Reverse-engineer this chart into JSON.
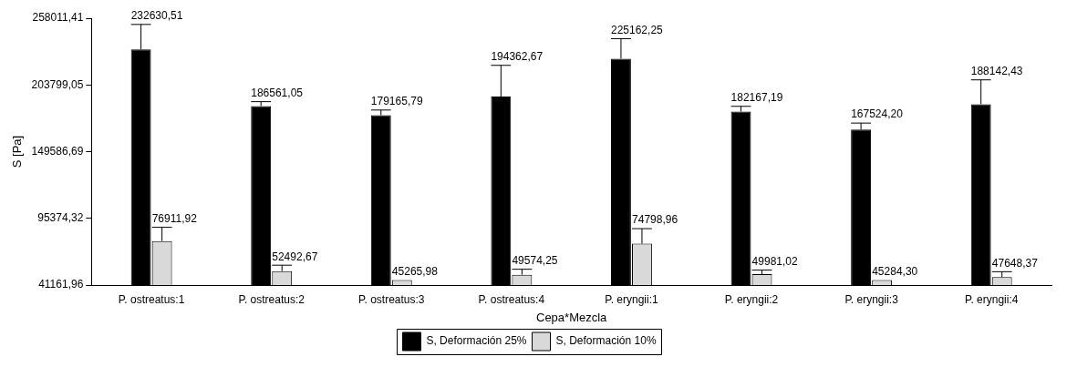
{
  "chart_data": {
    "type": "bar",
    "xlabel": "Cepa*Mezcla",
    "ylabel": "S [Pa]",
    "categories": [
      "P. ostreatus:1",
      "P. ostreatus:2",
      "P. ostreatus:3",
      "P. ostreatus:4",
      "P. eryngii:1",
      "P. eryngii:2",
      "P. eryngii:3",
      "P. eryngii:4"
    ],
    "series": [
      {
        "name": "S, Deformación 25%",
        "color": "#000000",
        "values": [
          232630.51,
          186561.05,
          179165.79,
          194362.67,
          225162.25,
          182167.19,
          167524.2,
          188142.43
        ],
        "value_labels": [
          "232630,51",
          "186561,05",
          "179165,79",
          "194362,67",
          "225162,25",
          "182167,19",
          "167524,20",
          "188142,43"
        ],
        "errors": [
          [
            232630.51,
            252950
          ],
          [
            186561.05,
            190200
          ],
          [
            179165.79,
            183400
          ],
          [
            194362.67,
            219700
          ],
          [
            225162.25,
            241400
          ],
          [
            182167.19,
            186400
          ],
          [
            167524.2,
            172800
          ],
          [
            188142.43,
            207900
          ]
        ]
      },
      {
        "name": "S, Deformación 10%",
        "color": "#d9d9d9",
        "values": [
          76911.92,
          52492.67,
          45265.98,
          49574.25,
          74798.96,
          49981.02,
          45284.3,
          47648.37
        ],
        "value_labels": [
          "76911,92",
          "52492,67",
          "45265,98",
          "49574,25",
          "74798,96",
          "49981,02",
          "45284,30",
          "47648,37"
        ],
        "errors": [
          [
            76911.92,
            88100
          ],
          [
            52492.67,
            57300
          ],
          null,
          [
            49574.25,
            54000
          ],
          [
            74798.96,
            87000
          ],
          [
            49981.02,
            53300
          ],
          null,
          [
            47648.37,
            52000
          ]
        ]
      }
    ],
    "ylim": [
      41161.96,
      258011.41
    ],
    "yticks": [
      {
        "value": 41161.96,
        "label": "41161,96"
      },
      {
        "value": 95374.32,
        "label": "95374,32"
      },
      {
        "value": 149586.69,
        "label": "149586,69"
      },
      {
        "value": 203799.05,
        "label": "203799,05"
      },
      {
        "value": 258011.41,
        "label": "258011,41"
      }
    ],
    "grid": false,
    "legend": "bottom"
  }
}
